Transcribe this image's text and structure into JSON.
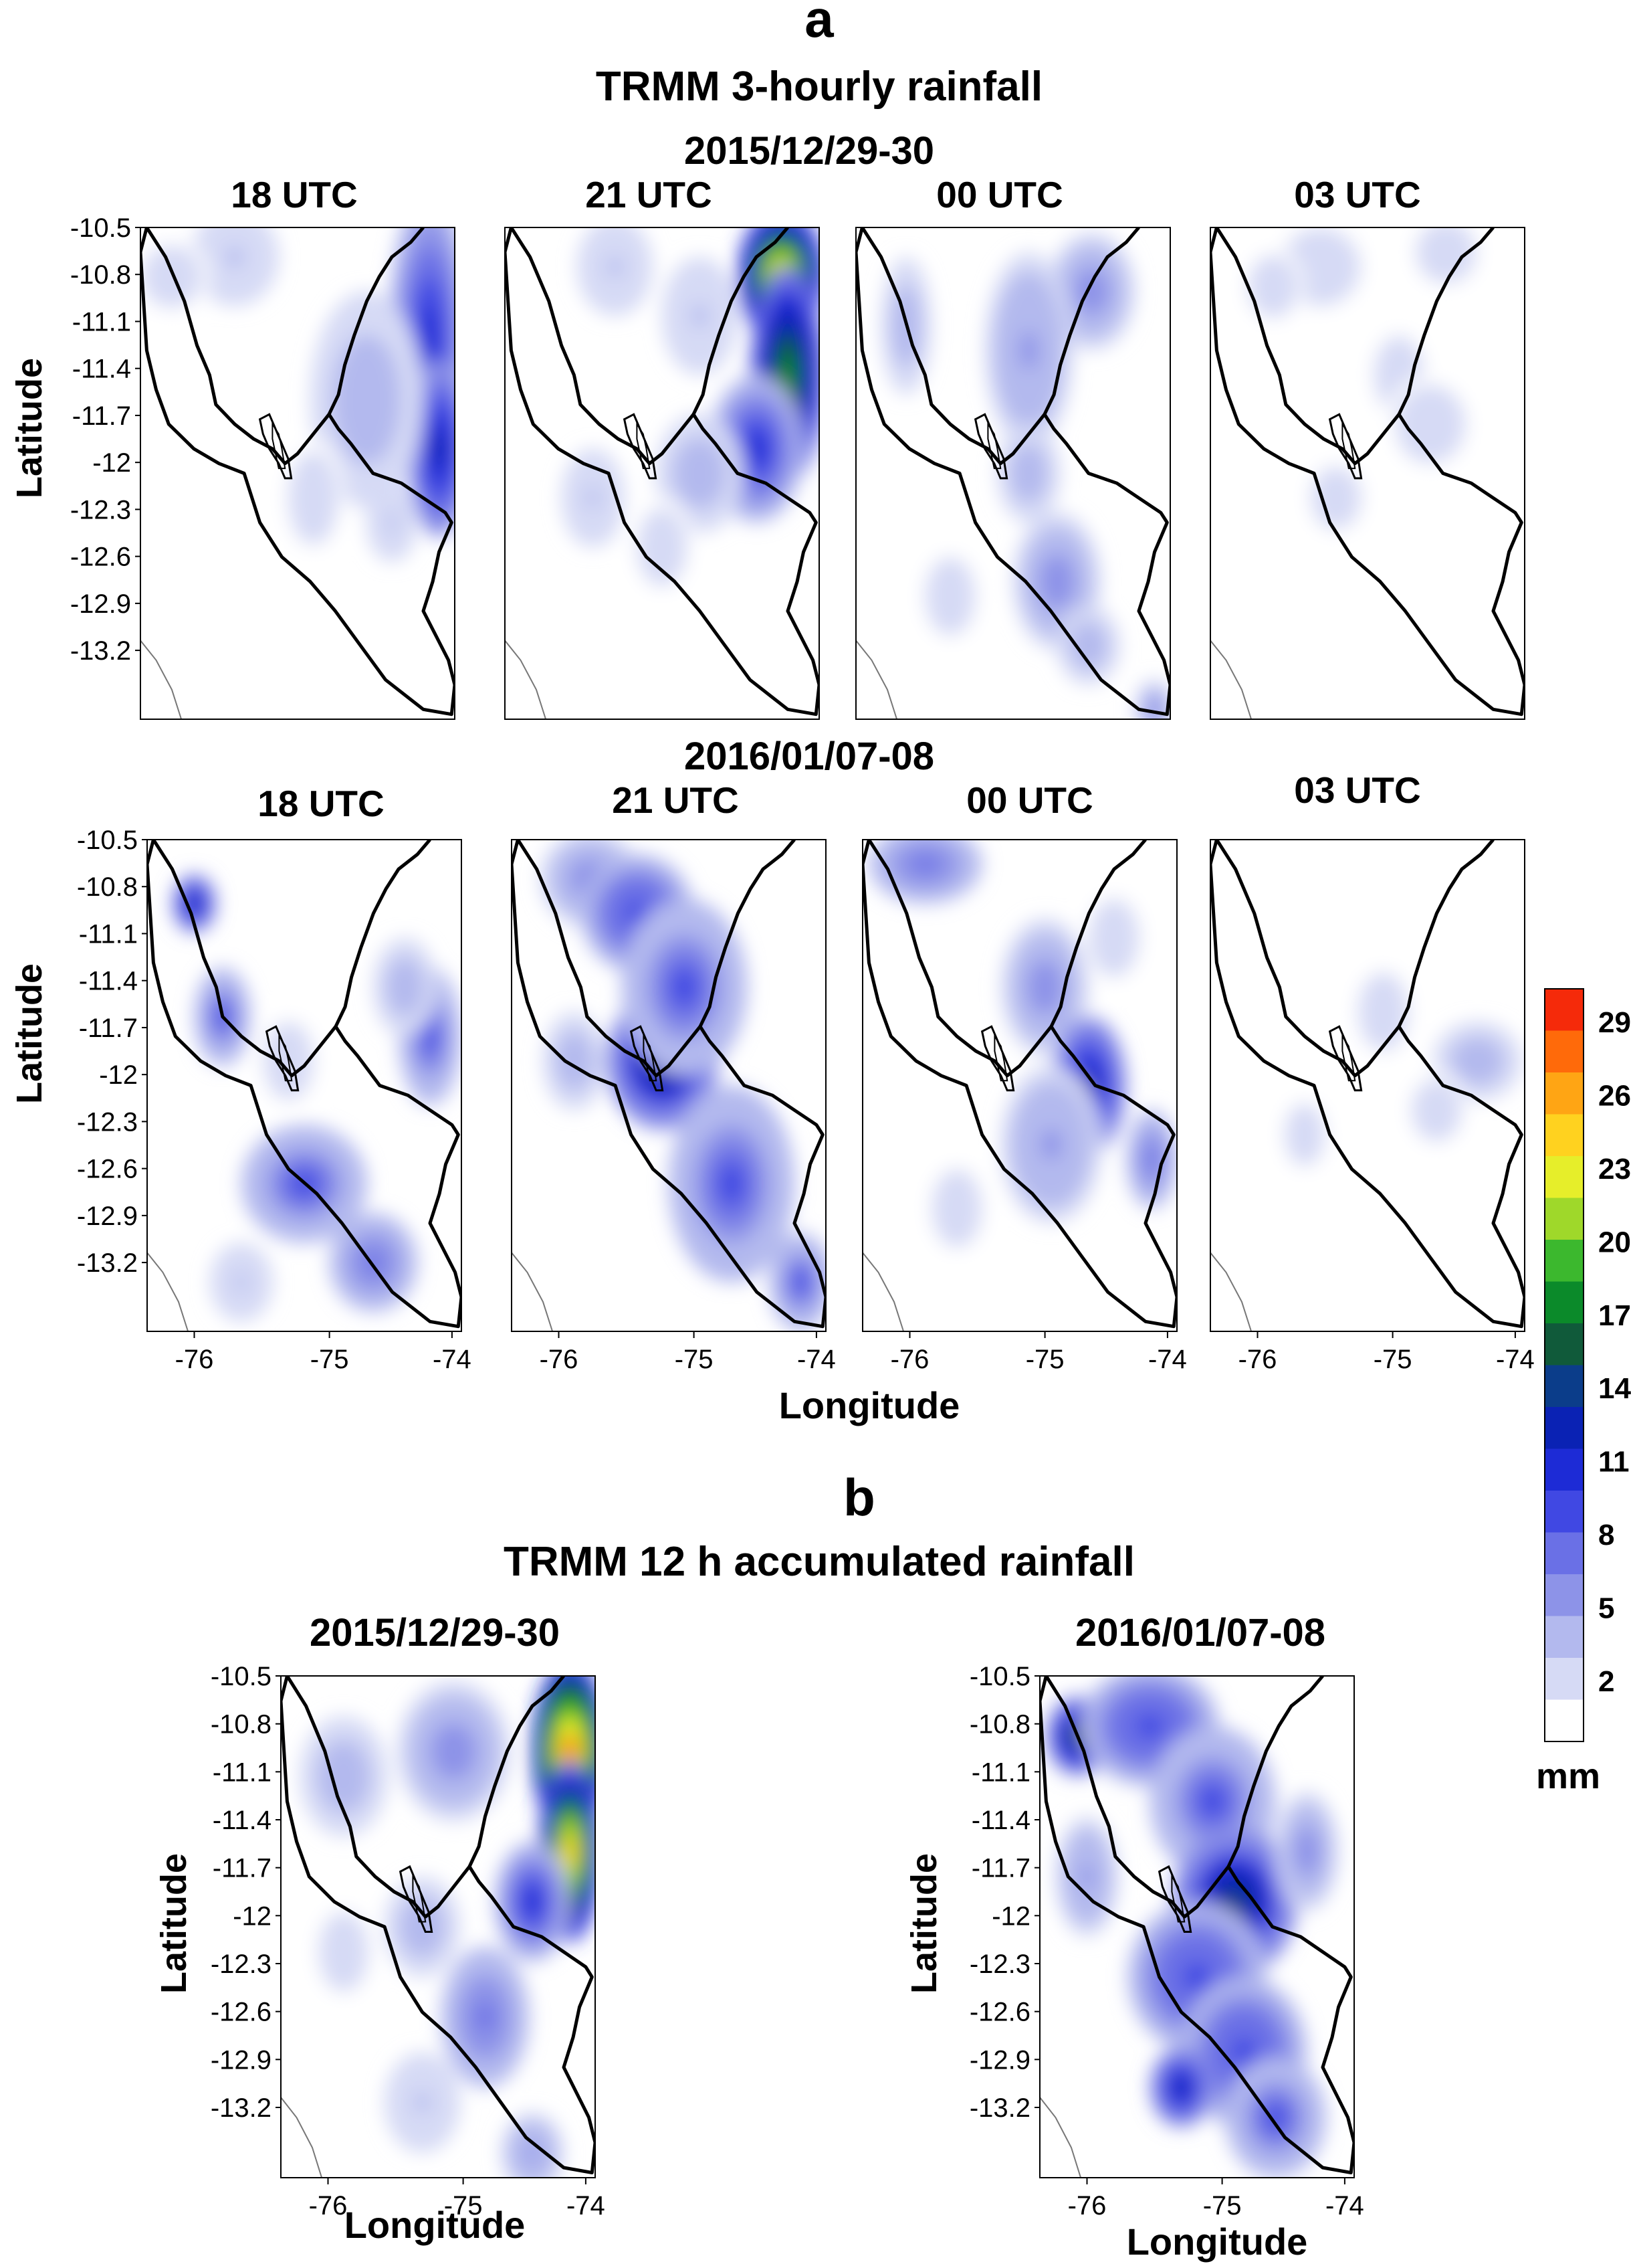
{
  "panel_a": {
    "letter": "a",
    "title": "TRMM 3-hourly rainfall",
    "rows": [
      {
        "date": "2015/12/29-30",
        "times": [
          "18 UTC",
          "21 UTC",
          "00 UTC",
          "03 UTC"
        ]
      },
      {
        "date": "2016/01/07-08",
        "times": [
          "18 UTC",
          "21 UTC",
          "00 UTC",
          "03 UTC"
        ]
      }
    ]
  },
  "panel_b": {
    "letter": "b",
    "title": "TRMM 12 h accumulated rainfall",
    "maps": [
      {
        "date": "2015/12/29-30"
      },
      {
        "date": "2016/01/07-08"
      }
    ]
  },
  "axes": {
    "ylabel": "Latitude",
    "xlabel": "Longitude",
    "lat_ticks": [
      "-10.5",
      "-10.8",
      "-11.1",
      "-11.4",
      "-11.7",
      "-12",
      "-12.3",
      "-12.6",
      "-12.9",
      "-13.2"
    ],
    "lon_ticks": [
      "-76",
      "-75",
      "-74"
    ]
  },
  "colorbar": {
    "unit": "mm",
    "ticks": [
      "29",
      "26",
      "23",
      "20",
      "17",
      "14",
      "11",
      "8",
      "5",
      "2"
    ],
    "colors": [
      "#ffffff",
      "#d6daf5",
      "#b3b9ee",
      "#8d93e8",
      "#6a70e6",
      "#4048e3",
      "#1d2bd6",
      "#0a22b4",
      "#0b3d8a",
      "#105a3a",
      "#0b8a2a",
      "#3cb82e",
      "#9fd82a",
      "#e6ee2a",
      "#ffd21f",
      "#ffa514",
      "#ff6a0a",
      "#f52a0a"
    ]
  },
  "maps": [
    {
      "id": "a-2015-18",
      "blobs": [
        [
          0.92,
          0.22,
          0.13,
          0.3,
          11
        ],
        [
          0.95,
          0.45,
          0.1,
          0.18,
          12
        ],
        [
          0.72,
          0.35,
          0.18,
          0.22,
          4
        ],
        [
          0.3,
          0.06,
          0.14,
          0.1,
          3
        ],
        [
          0.1,
          0.1,
          0.12,
          0.08,
          2
        ],
        [
          0.55,
          0.55,
          0.1,
          0.12,
          2
        ],
        [
          0.8,
          0.6,
          0.08,
          0.08,
          3
        ]
      ]
    },
    {
      "id": "a-2015-21",
      "blobs": [
        [
          0.88,
          0.1,
          0.14,
          0.14,
          24
        ],
        [
          0.9,
          0.3,
          0.12,
          0.22,
          18
        ],
        [
          0.8,
          0.45,
          0.15,
          0.15,
          10
        ],
        [
          0.35,
          0.08,
          0.12,
          0.1,
          3
        ],
        [
          0.62,
          0.18,
          0.12,
          0.12,
          3
        ],
        [
          0.62,
          0.5,
          0.14,
          0.12,
          4
        ],
        [
          0.28,
          0.55,
          0.1,
          0.1,
          3
        ],
        [
          0.5,
          0.65,
          0.1,
          0.1,
          2
        ]
      ]
    },
    {
      "id": "a-2015-00",
      "blobs": [
        [
          0.75,
          0.13,
          0.14,
          0.12,
          6
        ],
        [
          0.55,
          0.25,
          0.14,
          0.2,
          5
        ],
        [
          0.16,
          0.2,
          0.08,
          0.14,
          4
        ],
        [
          0.55,
          0.5,
          0.1,
          0.1,
          4
        ],
        [
          0.64,
          0.72,
          0.14,
          0.14,
          6
        ],
        [
          0.74,
          0.85,
          0.1,
          0.08,
          4
        ],
        [
          0.95,
          0.98,
          0.06,
          0.06,
          6
        ],
        [
          0.3,
          0.75,
          0.1,
          0.1,
          2
        ]
      ]
    },
    {
      "id": "a-2015-03",
      "blobs": [
        [
          0.35,
          0.08,
          0.16,
          0.1,
          2
        ],
        [
          0.75,
          0.05,
          0.12,
          0.08,
          2
        ],
        [
          0.6,
          0.3,
          0.1,
          0.1,
          2
        ],
        [
          0.4,
          0.55,
          0.1,
          0.08,
          2
        ],
        [
          0.7,
          0.4,
          0.14,
          0.1,
          2
        ],
        [
          0.2,
          0.12,
          0.1,
          0.08,
          2
        ]
      ]
    },
    {
      "id": "b-2016-18",
      "blobs": [
        [
          0.15,
          0.13,
          0.07,
          0.06,
          13
        ],
        [
          0.24,
          0.36,
          0.09,
          0.1,
          8
        ],
        [
          0.9,
          0.4,
          0.1,
          0.14,
          8
        ],
        [
          0.5,
          0.7,
          0.2,
          0.12,
          8
        ],
        [
          0.72,
          0.86,
          0.14,
          0.1,
          7
        ],
        [
          0.82,
          0.3,
          0.1,
          0.1,
          4
        ],
        [
          0.45,
          0.45,
          0.1,
          0.1,
          2
        ],
        [
          0.3,
          0.9,
          0.1,
          0.08,
          3
        ]
      ]
    },
    {
      "id": "b-2016-21",
      "blobs": [
        [
          0.25,
          0.08,
          0.16,
          0.1,
          6
        ],
        [
          0.4,
          0.15,
          0.18,
          0.12,
          9
        ],
        [
          0.48,
          0.45,
          0.18,
          0.14,
          14
        ],
        [
          0.55,
          0.3,
          0.2,
          0.18,
          8
        ],
        [
          0.7,
          0.7,
          0.2,
          0.2,
          8
        ],
        [
          0.92,
          0.9,
          0.1,
          0.1,
          8
        ],
        [
          0.2,
          0.45,
          0.1,
          0.1,
          4
        ]
      ]
    },
    {
      "id": "b-2016-00",
      "blobs": [
        [
          0.2,
          0.05,
          0.18,
          0.08,
          7
        ],
        [
          0.58,
          0.3,
          0.14,
          0.14,
          6
        ],
        [
          0.72,
          0.5,
          0.12,
          0.14,
          12
        ],
        [
          0.92,
          0.65,
          0.08,
          0.1,
          7
        ],
        [
          0.6,
          0.62,
          0.16,
          0.16,
          5
        ],
        [
          0.3,
          0.75,
          0.1,
          0.1,
          2
        ],
        [
          0.8,
          0.2,
          0.1,
          0.1,
          2
        ]
      ]
    },
    {
      "id": "b-2016-03",
      "blobs": [
        [
          0.85,
          0.45,
          0.14,
          0.08,
          4
        ],
        [
          0.55,
          0.35,
          0.1,
          0.1,
          2
        ],
        [
          0.72,
          0.55,
          0.1,
          0.08,
          2
        ],
        [
          0.3,
          0.6,
          0.08,
          0.08,
          2
        ]
      ]
    },
    {
      "id": "acc-2015",
      "blobs": [
        [
          0.92,
          0.15,
          0.12,
          0.18,
          28
        ],
        [
          0.92,
          0.35,
          0.1,
          0.18,
          24
        ],
        [
          0.8,
          0.45,
          0.12,
          0.12,
          10
        ],
        [
          0.55,
          0.15,
          0.18,
          0.14,
          6
        ],
        [
          0.2,
          0.2,
          0.14,
          0.12,
          4
        ],
        [
          0.65,
          0.68,
          0.14,
          0.14,
          7
        ],
        [
          0.45,
          0.5,
          0.12,
          0.1,
          4
        ],
        [
          0.8,
          0.95,
          0.1,
          0.08,
          5
        ],
        [
          0.2,
          0.55,
          0.1,
          0.1,
          2
        ],
        [
          0.45,
          0.85,
          0.12,
          0.1,
          3
        ]
      ]
    },
    {
      "id": "acc-2016",
      "blobs": [
        [
          0.12,
          0.12,
          0.1,
          0.08,
          15
        ],
        [
          0.35,
          0.1,
          0.22,
          0.12,
          9
        ],
        [
          0.55,
          0.25,
          0.2,
          0.15,
          8
        ],
        [
          0.62,
          0.45,
          0.2,
          0.15,
          14
        ],
        [
          0.5,
          0.6,
          0.22,
          0.15,
          9
        ],
        [
          0.65,
          0.75,
          0.2,
          0.15,
          9
        ],
        [
          0.75,
          0.88,
          0.16,
          0.12,
          8
        ],
        [
          0.85,
          0.35,
          0.1,
          0.12,
          6
        ],
        [
          0.45,
          0.82,
          0.1,
          0.08,
          12
        ],
        [
          0.15,
          0.4,
          0.1,
          0.12,
          5
        ]
      ]
    }
  ]
}
